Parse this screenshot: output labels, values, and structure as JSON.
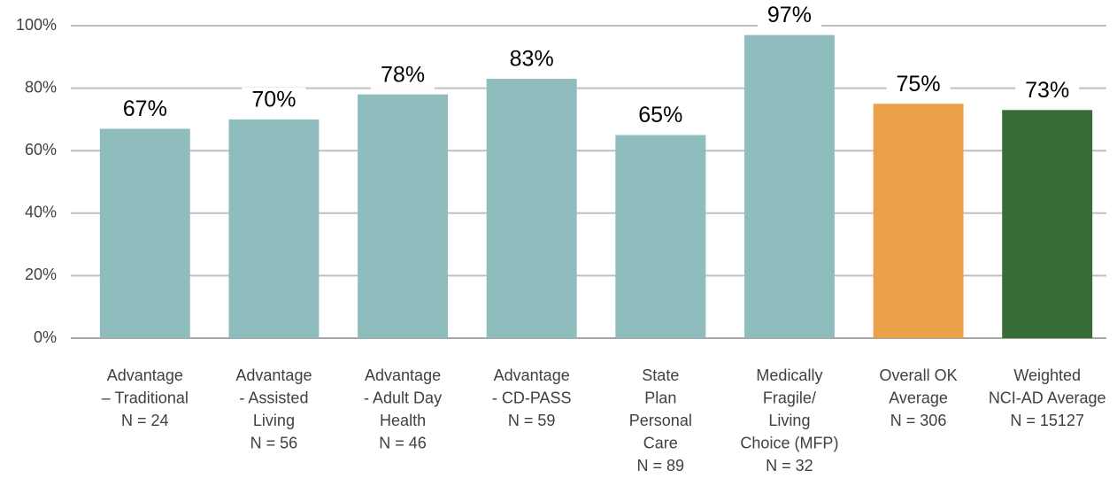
{
  "chart_data": {
    "type": "bar",
    "categories": [
      [
        "Advantage",
        "– Traditional",
        "N = 24"
      ],
      [
        "Advantage",
        "- Assisted",
        "Living",
        "N = 56"
      ],
      [
        "Advantage",
        "- Adult Day",
        "Health",
        "N = 46"
      ],
      [
        "Advantage",
        "- CD-PASS",
        "N = 59"
      ],
      [
        "State",
        "Plan",
        "Personal",
        "Care",
        "N = 89"
      ],
      [
        "Medically",
        "Fragile/",
        "Living",
        "Choice (MFP)",
        "N = 32"
      ],
      [
        "Overall OK",
        "Average",
        "N = 306"
      ],
      [
        "Weighted",
        "NCI-AD Average",
        "N = 15127"
      ]
    ],
    "values": [
      67,
      70,
      78,
      83,
      65,
      97,
      75,
      73
    ],
    "value_labels": [
      "67%",
      "70%",
      "78%",
      "83%",
      "65%",
      "97%",
      "75%",
      "73%"
    ],
    "colors": [
      "#8fbcbc",
      "#8fbcbc",
      "#8fbcbc",
      "#8fbcbc",
      "#8fbcbc",
      "#8fbcbc",
      "#eba04a",
      "#376b38"
    ],
    "ylim": [
      0,
      100
    ],
    "yticks": [
      {
        "value": 0,
        "label": "0%"
      },
      {
        "value": 20,
        "label": "20%"
      },
      {
        "value": 40,
        "label": "40%"
      },
      {
        "value": 60,
        "label": "60%"
      },
      {
        "value": 80,
        "label": "80%"
      },
      {
        "value": 100,
        "label": "100%"
      }
    ],
    "grid": true
  }
}
